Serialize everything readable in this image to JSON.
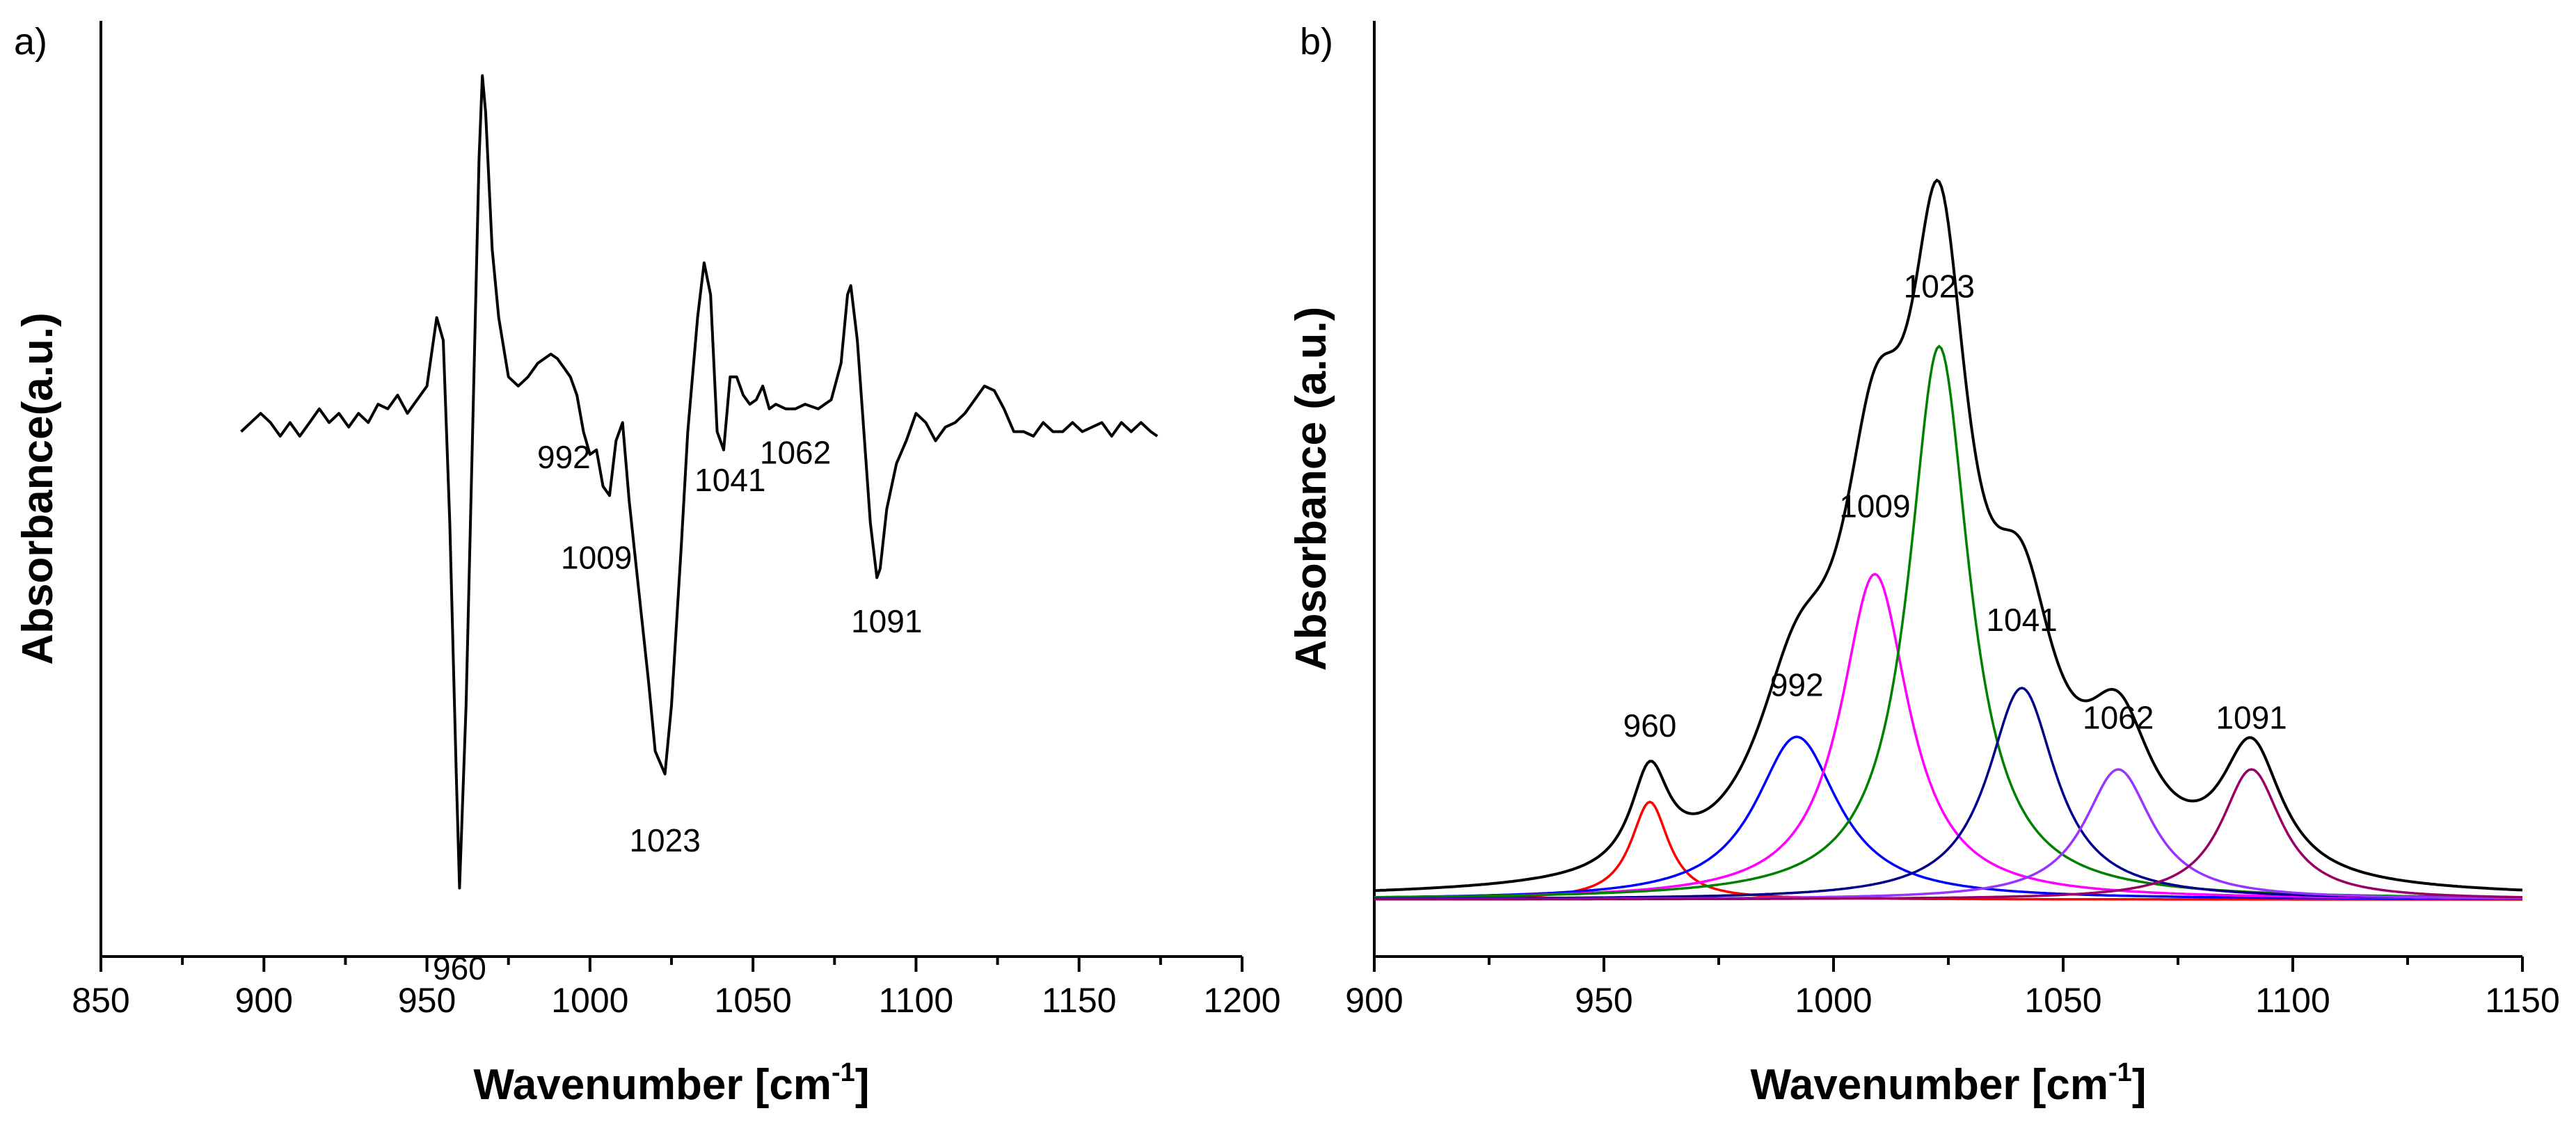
{
  "chart_data": [
    {
      "panel": "a)",
      "type": "line",
      "title": "",
      "xlabel": "Wavenumber [cm",
      "xlabel_sup": "-1",
      "xlabel_end": "]",
      "ylabel": "Absorbance(a.u.)",
      "xlim": [
        850,
        1200
      ],
      "ylim": [
        -1.15,
        0.9
      ],
      "x_ticks": [
        850,
        900,
        950,
        1000,
        1050,
        1100,
        1150,
        1200
      ],
      "y_ticks_labeled": false,
      "grid": false,
      "series": [
        {
          "color": "#000000",
          "points": [
            [
              893,
              0
            ],
            [
              896,
              0.02
            ],
            [
              899,
              0.04
            ],
            [
              902,
              0.02
            ],
            [
              905,
              -0.01
            ],
            [
              908,
              0.02
            ],
            [
              911,
              -0.01
            ],
            [
              914,
              0.02
            ],
            [
              917,
              0.05
            ],
            [
              920,
              0.02
            ],
            [
              923,
              0.04
            ],
            [
              926,
              0.01
            ],
            [
              929,
              0.04
            ],
            [
              932,
              0.02
            ],
            [
              935,
              0.06
            ],
            [
              938,
              0.05
            ],
            [
              941,
              0.08
            ],
            [
              944,
              0.04
            ],
            [
              947,
              0.07
            ],
            [
              950,
              0.1
            ],
            [
              953,
              0.25
            ],
            [
              955,
              0.2
            ],
            [
              957,
              -0.2
            ],
            [
              959,
              -0.75
            ],
            [
              960,
              -1.0
            ],
            [
              962,
              -0.6
            ],
            [
              964,
              0
            ],
            [
              966,
              0.6
            ],
            [
              967,
              0.78
            ],
            [
              968,
              0.7
            ],
            [
              970,
              0.4
            ],
            [
              972,
              0.25
            ],
            [
              975,
              0.12
            ],
            [
              978,
              0.1
            ],
            [
              981,
              0.12
            ],
            [
              984,
              0.15
            ],
            [
              988,
              0.17
            ],
            [
              990,
              0.16
            ],
            [
              992,
              0.14
            ],
            [
              994,
              0.12
            ],
            [
              996,
              0.08
            ],
            [
              998,
              0
            ],
            [
              1000,
              -0.05
            ],
            [
              1002,
              -0.04
            ],
            [
              1004,
              -0.12
            ],
            [
              1006,
              -0.14
            ],
            [
              1008,
              -0.02
            ],
            [
              1010,
              0.02
            ],
            [
              1012,
              -0.15
            ],
            [
              1015,
              -0.35
            ],
            [
              1018,
              -0.55
            ],
            [
              1020,
              -0.7
            ],
            [
              1023,
              -0.75
            ],
            [
              1025,
              -0.6
            ],
            [
              1028,
              -0.25
            ],
            [
              1030,
              0
            ],
            [
              1033,
              0.25
            ],
            [
              1035,
              0.37
            ],
            [
              1037,
              0.3
            ],
            [
              1039,
              0
            ],
            [
              1041,
              -0.04
            ],
            [
              1043,
              0.12
            ],
            [
              1045,
              0.12
            ],
            [
              1047,
              0.08
            ],
            [
              1049,
              0.06
            ],
            [
              1051,
              0.07
            ],
            [
              1053,
              0.1
            ],
            [
              1055,
              0.05
            ],
            [
              1057,
              0.06
            ],
            [
              1060,
              0.05
            ],
            [
              1063,
              0.05
            ],
            [
              1066,
              0.06
            ],
            [
              1070,
              0.05
            ],
            [
              1074,
              0.07
            ],
            [
              1077,
              0.15
            ],
            [
              1079,
              0.3
            ],
            [
              1080,
              0.32
            ],
            [
              1082,
              0.2
            ],
            [
              1084,
              0
            ],
            [
              1086,
              -0.2
            ],
            [
              1088,
              -0.32
            ],
            [
              1089,
              -0.3
            ],
            [
              1091,
              -0.17
            ],
            [
              1094,
              -0.07
            ],
            [
              1097,
              -0.02
            ],
            [
              1100,
              0.04
            ],
            [
              1103,
              0.02
            ],
            [
              1106,
              -0.02
            ],
            [
              1109,
              0.01
            ],
            [
              1112,
              0.02
            ],
            [
              1115,
              0.04
            ],
            [
              1118,
              0.07
            ],
            [
              1121,
              0.1
            ],
            [
              1124,
              0.09
            ],
            [
              1127,
              0.05
            ],
            [
              1130,
              0
            ],
            [
              1133,
              0
            ],
            [
              1136,
              -0.01
            ],
            [
              1139,
              0.02
            ],
            [
              1142,
              0
            ],
            [
              1145,
              0
            ],
            [
              1148,
              0.02
            ],
            [
              1151,
              0
            ],
            [
              1154,
              0.01
            ],
            [
              1157,
              0.02
            ],
            [
              1160,
              -0.01
            ],
            [
              1163,
              0.02
            ],
            [
              1166,
              0
            ],
            [
              1169,
              0.02
            ],
            [
              1172,
              0
            ],
            [
              1174,
              -0.01
            ]
          ]
        }
      ],
      "annotations": [
        {
          "text": "960",
          "x": 960,
          "y": -1.2
        },
        {
          "text": "992",
          "x": 992,
          "y": -0.08
        },
        {
          "text": "1009",
          "x": 1002,
          "y": -0.3
        },
        {
          "text": "1023",
          "x": 1023,
          "y": -0.92
        },
        {
          "text": "1041",
          "x": 1043,
          "y": -0.13
        },
        {
          "text": "1062",
          "x": 1063,
          "y": -0.07
        },
        {
          "text": "1091",
          "x": 1091,
          "y": -0.44
        }
      ]
    },
    {
      "panel": "b)",
      "type": "line",
      "title": "",
      "xlabel": "Wavenumber [cm",
      "xlabel_sup": "-1",
      "xlabel_end": "]",
      "ylabel": "Absorbance (a.u.)",
      "xlim": [
        900,
        1150
      ],
      "ylim": [
        -0.07,
        1.08
      ],
      "x_ticks": [
        900,
        950,
        1000,
        1050,
        1100,
        1150
      ],
      "y_ticks_labeled": false,
      "grid": false,
      "components": [
        {
          "center": 960,
          "height": 0.12,
          "hwhm": 5,
          "color": "#ff0000",
          "label": "960"
        },
        {
          "center": 992,
          "height": 0.2,
          "hwhm": 11,
          "color": "#0000ff",
          "label": "992"
        },
        {
          "center": 1009,
          "height": 0.4,
          "hwhm": 9,
          "color": "#ff00ff",
          "label": "1009"
        },
        {
          "center": 1023,
          "height": 0.68,
          "hwhm": 8,
          "color": "#008000",
          "label": "1023"
        },
        {
          "center": 1041,
          "height": 0.26,
          "hwhm": 9,
          "color": "#00008b",
          "label": "1041"
        },
        {
          "center": 1062,
          "height": 0.16,
          "hwhm": 9,
          "color": "#9933ff",
          "label": "1062"
        },
        {
          "center": 1091,
          "height": 0.16,
          "hwhm": 8,
          "color": "#990066",
          "label": "1091"
        }
      ],
      "envelope_color": "#000000",
      "peak_label_offsets": [
        0.08,
        0.05,
        0.07,
        0.06,
        0.07,
        0.05,
        0.05
      ]
    }
  ]
}
